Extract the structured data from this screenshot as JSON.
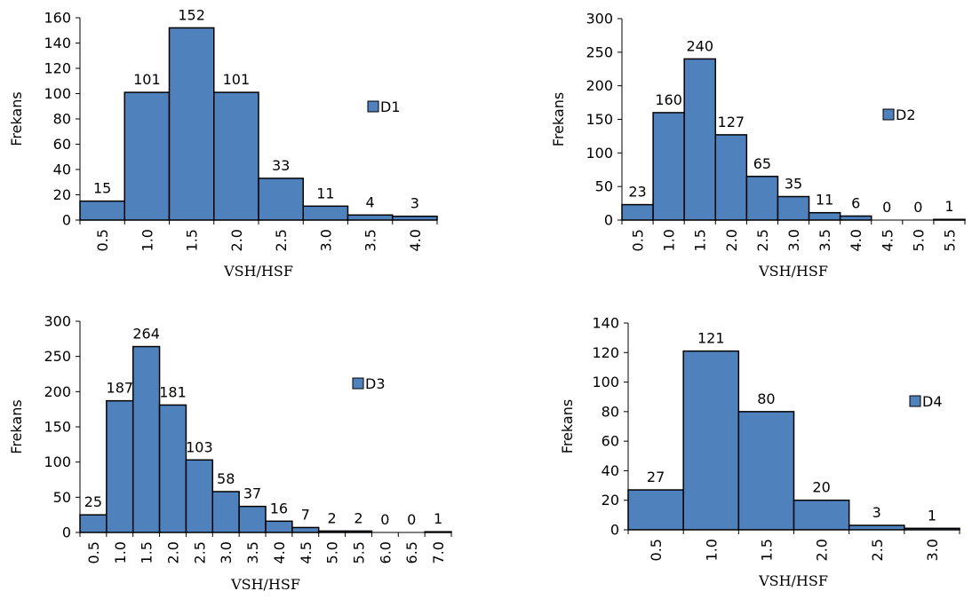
{
  "colors": {
    "bar_fill": "#4F81BD",
    "bar_stroke": "#000000",
    "axis": "#000000",
    "background": "#ffffff"
  },
  "chart_data": [
    {
      "type": "bar",
      "categories": [
        "0.5",
        "1.0",
        "1.5",
        "2.0",
        "2.5",
        "3.0",
        "3.5",
        "4.0"
      ],
      "series": [
        {
          "name": "D1",
          "values": [
            15,
            101,
            152,
            101,
            33,
            11,
            4,
            3
          ]
        }
      ],
      "xlabel": "VSH/HSF",
      "ylabel": "Frekans",
      "ylim": [
        0,
        160
      ],
      "yticks": [
        0,
        20,
        40,
        60,
        80,
        100,
        120,
        140,
        160
      ],
      "legend_position": "right",
      "grid": false
    },
    {
      "type": "bar",
      "categories": [
        "0.5",
        "1.0",
        "1.5",
        "2.0",
        "2.5",
        "3.0",
        "3.5",
        "4.0",
        "4.5",
        "5.0",
        "5.5"
      ],
      "series": [
        {
          "name": "D2",
          "values": [
            23,
            160,
            240,
            127,
            65,
            35,
            11,
            6,
            0,
            0,
            1
          ]
        }
      ],
      "xlabel": "VSH/HSF",
      "ylabel": "Frekans",
      "ylim": [
        0,
        300
      ],
      "yticks": [
        0,
        50,
        100,
        150,
        200,
        250,
        300
      ],
      "legend_position": "right",
      "grid": false
    },
    {
      "type": "bar",
      "categories": [
        "0.5",
        "1.0",
        "1.5",
        "2.0",
        "2.5",
        "3.0",
        "3.5",
        "4.0",
        "4.5",
        "5.0",
        "5.5",
        "6.0",
        "6.5",
        "7.0"
      ],
      "series": [
        {
          "name": "D3",
          "values": [
            25,
            187,
            264,
            181,
            103,
            58,
            37,
            16,
            7,
            2,
            2,
            0,
            0,
            1
          ]
        }
      ],
      "xlabel": "VSH/HSF",
      "ylabel": "Frekans",
      "ylim": [
        0,
        300
      ],
      "yticks": [
        0,
        50,
        100,
        150,
        200,
        250,
        300
      ],
      "legend_position": "right",
      "grid": false
    },
    {
      "type": "bar",
      "categories": [
        "0.5",
        "1.0",
        "1.5",
        "2.0",
        "2.5",
        "3.0"
      ],
      "series": [
        {
          "name": "D4",
          "values": [
            27,
            121,
            80,
            20,
            3,
            1
          ]
        }
      ],
      "xlabel": "VSH/HSF",
      "ylabel": "Frekans",
      "ylim": [
        0,
        140
      ],
      "yticks": [
        0,
        20,
        40,
        60,
        80,
        100,
        120,
        140
      ],
      "legend_position": "right",
      "grid": false
    }
  ]
}
